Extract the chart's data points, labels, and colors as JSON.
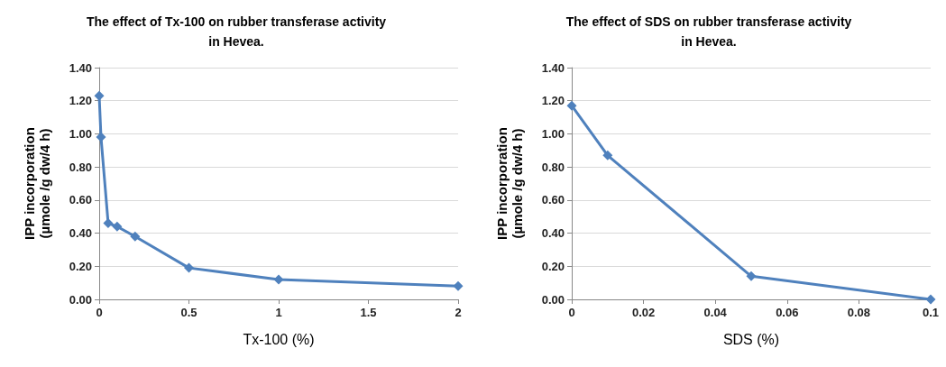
{
  "chart_data": [
    {
      "type": "line",
      "title": "The effect of Tx-100 on rubber transferase activity\nin Hevea.",
      "xlabel": "Tx-100 (%)",
      "ylabel": "IPP incorporation\n(µmole /g dw/4 h)",
      "x": [
        0,
        0.01,
        0.05,
        0.1,
        0.2,
        0.5,
        1,
        2
      ],
      "series": [
        {
          "color": "#4f81bd",
          "values": [
            1.23,
            0.98,
            0.46,
            0.44,
            0.38,
            0.19,
            0.12,
            0.08
          ]
        }
      ],
      "xlim": [
        0,
        2
      ],
      "xticks": [
        0,
        0.5,
        1,
        1.5,
        2
      ],
      "ylim": [
        0,
        1.4
      ],
      "yticks": [
        {
          "value": 0,
          "label": "0.00"
        },
        {
          "value": 0.2,
          "label": "0.20"
        },
        {
          "value": 0.4,
          "label": "0.40"
        },
        {
          "value": 0.6,
          "label": "0.60"
        },
        {
          "value": 0.8,
          "label": "0.80"
        },
        {
          "value": 1,
          "label": "1.00"
        },
        {
          "value": 1.2,
          "label": "1.20"
        },
        {
          "value": 1.4,
          "label": "1.40"
        }
      ],
      "grid": "y",
      "marker": "diamond",
      "line_style": "solid"
    },
    {
      "type": "line",
      "title": "The effect of SDS on rubber transferase activity\nin Hevea.",
      "xlabel": "SDS (%)",
      "ylabel": "IPP incorporation\n(µmole /g dw/4 h)",
      "x": [
        0,
        0.01,
        0.05,
        0.1
      ],
      "series": [
        {
          "color": "#4f81bd",
          "values": [
            1.17,
            0.87,
            0.14,
            0.0
          ]
        }
      ],
      "xlim": [
        0,
        0.1
      ],
      "xticks": [
        0,
        0.02,
        0.04,
        0.06,
        0.08,
        0.1
      ],
      "ylim": [
        0,
        1.4
      ],
      "yticks": [
        {
          "value": 0,
          "label": "0.00"
        },
        {
          "value": 0.2,
          "label": "0.20"
        },
        {
          "value": 0.4,
          "label": "0.40"
        },
        {
          "value": 0.6,
          "label": "0.60"
        },
        {
          "value": 0.8,
          "label": "0.80"
        },
        {
          "value": 1,
          "label": "1.00"
        },
        {
          "value": 1.2,
          "label": "1.20"
        },
        {
          "value": 1.4,
          "label": "1.40"
        }
      ],
      "grid": "y",
      "marker": "diamond",
      "line_style": "solid"
    }
  ]
}
